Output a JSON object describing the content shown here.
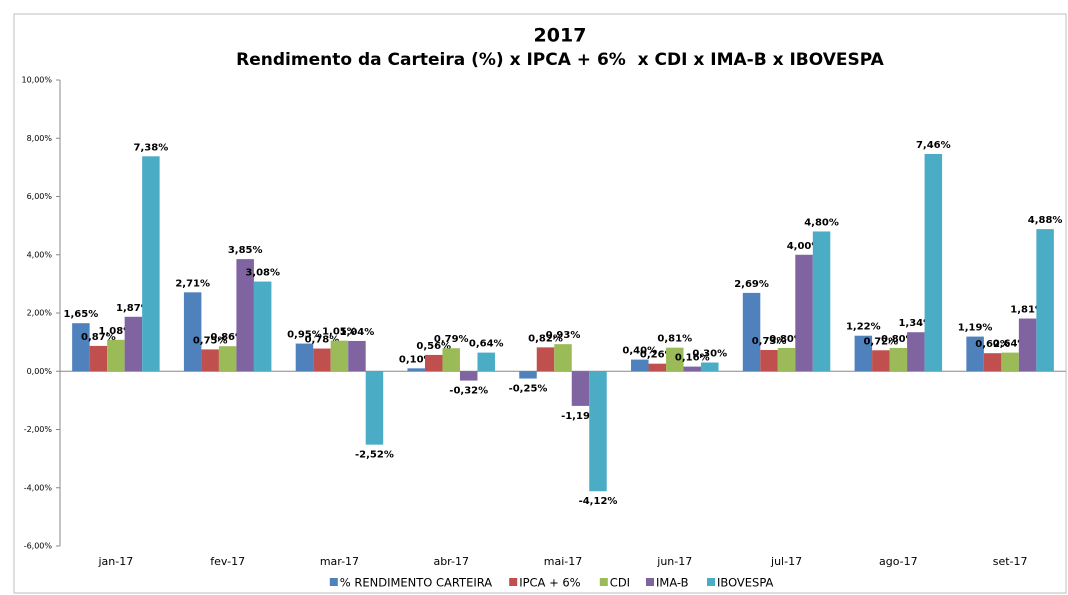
{
  "chart_data": {
    "type": "bar",
    "title": "2017",
    "subtitle": "Rendimento da Carteira (%) x IPCA + 6%  x CDI x IMA-B x IBOVESPA",
    "categories": [
      "jan-17",
      "fev-17",
      "mar-17",
      "abr-17",
      "mai-17",
      "jun-17",
      "jul-17",
      "ago-17",
      "set-17"
    ],
    "series": [
      {
        "name": "% RENDIMENTO CARTEIRA",
        "color": "#4f81bd",
        "values": [
          1.65,
          2.71,
          0.95,
          0.1,
          -0.25,
          0.4,
          2.69,
          1.22,
          1.19
        ],
        "value_labels": [
          "1,65%",
          "2,71%",
          "0,95%",
          "0,10%",
          "-0,25%",
          "0,40%",
          "2,69%",
          "1,22%",
          "1,19%"
        ]
      },
      {
        "name": "IPCA + 6%",
        "color": "#c0504d",
        "values": [
          0.87,
          0.75,
          0.78,
          0.56,
          0.82,
          0.26,
          0.73,
          0.72,
          0.62
        ],
        "value_labels": [
          "0,87%",
          "0,75%",
          "0,78%",
          "0,56%",
          "0,82%",
          "0,26%",
          "0,73%",
          "0,72%",
          "0,62%"
        ]
      },
      {
        "name": "CDI",
        "color": "#9bbb59",
        "values": [
          1.08,
          0.86,
          1.05,
          0.79,
          0.93,
          0.81,
          0.8,
          0.8,
          0.64
        ],
        "value_labels": [
          "1,08%",
          "0,86%",
          "1,05%",
          "0,79%",
          "0,93%",
          "0,81%",
          "0,80%",
          "0,80%",
          "0,64%"
        ]
      },
      {
        "name": "IMA-B",
        "color": "#8064a2",
        "values": [
          1.87,
          3.85,
          1.04,
          -0.32,
          -1.19,
          0.16,
          4.0,
          1.34,
          1.81
        ],
        "value_labels": [
          "1,87%",
          "3,85%",
          "1,04%",
          "-0,32%",
          "-1,19%",
          "0,16%",
          "4,00%",
          "1,34%",
          "1,81%"
        ]
      },
      {
        "name": "IBOVESPA",
        "color": "#4bacc6",
        "values": [
          7.38,
          3.08,
          -2.52,
          0.64,
          -4.12,
          0.3,
          4.8,
          7.46,
          4.88
        ],
        "value_labels": [
          "7,38%",
          "3,08%",
          "-2,52%",
          "0,64%",
          "-4,12%",
          "0,30%",
          "4,80%",
          "7,46%",
          "4,88%"
        ]
      }
    ],
    "ylim": [
      -6,
      10
    ],
    "yticks": [
      {
        "value": -6,
        "label": "-6,00%"
      },
      {
        "value": -4,
        "label": "-4,00%"
      },
      {
        "value": -2,
        "label": "-2,00%"
      },
      {
        "value": 0,
        "label": "0,00%"
      },
      {
        "value": 2,
        "label": "2,00%"
      },
      {
        "value": 4,
        "label": "4,00%"
      },
      {
        "value": 6,
        "label": "6,00%"
      },
      {
        "value": 8,
        "label": "8,00%"
      },
      {
        "value": 10,
        "label": "10,00%"
      }
    ],
    "legend": "bottom"
  }
}
